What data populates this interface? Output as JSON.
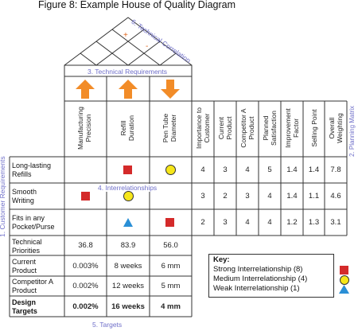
{
  "figure_title": "Figure 8: Example House of Quality Diagram",
  "section_labels": {
    "technical_correlation": "6. Technical Correlation",
    "technical_requirements": "3. Technical Requirements",
    "interrelationships": "4. Interrelationships",
    "customer_requirements": "1. Customer Requirements",
    "planning_matrix": "2. Planning Matrix",
    "targets": "5. Targets"
  },
  "roof_symbols": [
    "+",
    "-"
  ],
  "technical_requirements": [
    {
      "label": "Manufacturing\nPrecision",
      "direction": "up"
    },
    {
      "label": "Refill\nDuration",
      "direction": "up"
    },
    {
      "label": "Pen Tube\nDiameter",
      "direction": "down"
    }
  ],
  "planning_headers": [
    "Importance to\nCustomer",
    "Current\nProduct",
    "Competitor A\nProduct",
    "Planned\nSatisfaction",
    "Improvement\nFactor",
    "Selling Point",
    "Overall\nWeighting"
  ],
  "customer_requirements": [
    {
      "label": "Long-lasting\nRefills",
      "relations": [
        "",
        "strong",
        "medium"
      ],
      "planning": [
        "4",
        "3",
        "4",
        "5",
        "1.4",
        "1.4",
        "7.8"
      ]
    },
    {
      "label": "Smooth\nWriting",
      "relations": [
        "strong",
        "medium",
        ""
      ],
      "planning": [
        "3",
        "2",
        "3",
        "4",
        "1.4",
        "1.1",
        "4.6"
      ]
    },
    {
      "label": "Fits in any\nPocket/Purse",
      "relations": [
        "",
        "weak",
        "strong"
      ],
      "planning": [
        "2",
        "3",
        "4",
        "4",
        "1.2",
        "1.3",
        "3.1"
      ]
    }
  ],
  "target_rows": [
    {
      "label": "Technical\nPriorities",
      "values": [
        "36.8",
        "83.9",
        "56.0"
      ],
      "bold": false
    },
    {
      "label": "Current\nProduct",
      "values": [
        "0.003%",
        "8 weeks",
        "6 mm"
      ],
      "bold": false
    },
    {
      "label": "Competitor A\nProduct",
      "values": [
        "0.002%",
        "12 weeks",
        "5 mm"
      ],
      "bold": false
    },
    {
      "label": "Design\nTargets",
      "values": [
        "0.002%",
        "16 weeks",
        "4 mm"
      ],
      "bold": true
    }
  ],
  "key": {
    "title": "Key:",
    "items": [
      {
        "label": "Strong Interrelationship (8)",
        "symbol": "strong"
      },
      {
        "label": "Medium Interrelationship (4)",
        "symbol": "medium"
      },
      {
        "label": "Weak Interrelationship (1)",
        "symbol": "weak"
      }
    ]
  },
  "colors": {
    "arrow": "#f28c28",
    "strong": "#d42a2a",
    "medium": "#f6e61a",
    "weak": "#2a8fd6",
    "label_blue": "#6f6fc9",
    "roof_plus": "#e0651b",
    "roof_minus": "#e0651b"
  }
}
